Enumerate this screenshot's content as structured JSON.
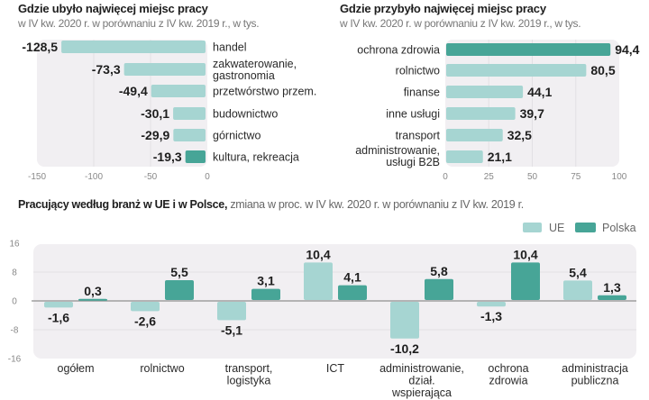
{
  "colors": {
    "ue": "#a6d5d2",
    "polska": "#47a597",
    "plot_bg": "#f1eff2",
    "grid": "#e2e0e4",
    "zero_line": "#8f8f8f"
  },
  "chart_data": [
    {
      "type": "bar",
      "orientation": "horizontal",
      "title": "Gdzie ubyło najwięcej miejsc pracy",
      "subtitle": "w IV kw. 2020 r. w porównaniu z IV kw. 2019 r., w tys.",
      "categories": [
        "handel",
        "zakwaterowanie, gastronomia",
        "przetwórstwo przem.",
        "budownictwo",
        "górnictwo",
        "kultura, rekreacja"
      ],
      "values": [
        -128.5,
        -73.3,
        -49.4,
        -30.1,
        -29.9,
        -19.3
      ],
      "value_labels": [
        "-128,5",
        "-73,3",
        "-49,4",
        "-30,1",
        "-29,9",
        "-19,3"
      ],
      "highlight": [
        false,
        false,
        false,
        false,
        false,
        true
      ],
      "xlim": [
        -150,
        0
      ],
      "xticks": [
        -150,
        -100,
        -50,
        0
      ],
      "xtick_labels": [
        "-150",
        "-100",
        "-50",
        "0"
      ],
      "grid": true
    },
    {
      "type": "bar",
      "orientation": "horizontal",
      "title": "Gdzie przybyło najwięcej miejsc pracy",
      "subtitle": "w IV kw. 2020 r. w porównaniu z IV kw. 2019 r., w tys.",
      "categories": [
        "ochrona zdrowia",
        "rolnictwo",
        "finanse",
        "inne usługi",
        "transport",
        "administrowanie, usługi B2B"
      ],
      "values": [
        94.4,
        80.5,
        44.1,
        39.7,
        32.5,
        21.1
      ],
      "value_labels": [
        "94,4",
        "80,5",
        "44,1",
        "39,7",
        "32,5",
        "21,1"
      ],
      "highlight": [
        true,
        false,
        false,
        false,
        false,
        false
      ],
      "xlim": [
        0,
        100
      ],
      "xticks": [
        0,
        25,
        50,
        75,
        100
      ],
      "xtick_labels": [
        "0",
        "25",
        "50",
        "75",
        "100"
      ],
      "grid": true
    },
    {
      "type": "bar",
      "orientation": "vertical",
      "title": "Pracujący według branż w UE i w Polsce,",
      "subtitle": "zmiana w proc. w IV kw. 2020 r. w porównaniu z IV kw. 2019 r.",
      "categories": [
        "ogółem",
        "rolnictwo",
        "transport, logistyka",
        "ICT",
        "administrowanie, dział. wspierająca",
        "ochrona zdrowia",
        "administracja publiczna"
      ],
      "category_lines": [
        [
          "ogółem"
        ],
        [
          "rolnictwo"
        ],
        [
          "transport,",
          "logistyka"
        ],
        [
          "ICT"
        ],
        [
          "administrowanie,",
          "dział.",
          "wspierająca"
        ],
        [
          "ochrona",
          "zdrowia"
        ],
        [
          "administracja",
          "publiczna"
        ]
      ],
      "series": [
        {
          "name": "UE",
          "values": [
            -1.6,
            -2.6,
            -5.1,
            10.4,
            -10.2,
            -1.3,
            5.4
          ],
          "value_labels": [
            "-1,6",
            "-2,6",
            "-5,1",
            "10,4",
            "-10,2",
            "-1,3",
            "5,4"
          ]
        },
        {
          "name": "Polska",
          "values": [
            0.3,
            5.5,
            3.1,
            4.1,
            5.8,
            10.4,
            1.3
          ],
          "value_labels": [
            "0,3",
            "5,5",
            "3,1",
            "4,1",
            "5,8",
            "10,4",
            "1,3"
          ]
        }
      ],
      "ylim": [
        -16,
        16
      ],
      "yticks": [
        16,
        8,
        0,
        -8,
        -16
      ],
      "ytick_labels": [
        "16",
        "8",
        "0",
        "-8",
        "-16"
      ],
      "legend": "top-right",
      "grid": true
    }
  ]
}
